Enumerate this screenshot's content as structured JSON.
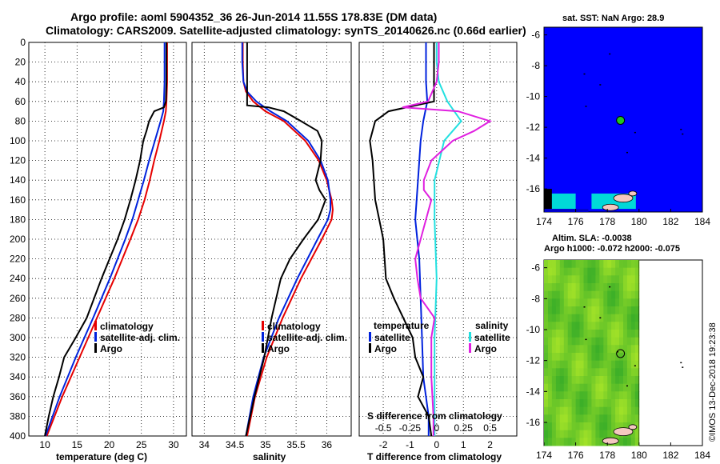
{
  "header": {
    "title_line1": "Argo profile: aoml 5904352_36 26-Jun-2014 11.55S 178.83E (DM data)",
    "title_line2": "Climatology: CARS2009. Satellite-adjusted climatology: synTS_20140626.nc (0.66d earlier)"
  },
  "stamp": "©IMOS 13-Dec-2018 19:23:38",
  "colors": {
    "climatology": "#e60000",
    "satellite": "#0022dd",
    "argo": "#000000",
    "salinity_sat": "#22e0e0",
    "salinity_argo": "#e020e0",
    "sea": "#0000ff",
    "land": "#f4c8c0",
    "sst_marker": "#22c422",
    "sla_field": "#66dd22"
  },
  "chart_data": [
    {
      "type": "line",
      "name": "temperature-profile",
      "xlabel": "temperature (deg C)",
      "ylabel": "",
      "xlim": [
        7.5,
        32
      ],
      "ylim": [
        400,
        0
      ],
      "x_ticks": [
        10,
        15,
        20,
        25,
        30
      ],
      "y_ticks": [
        0,
        20,
        40,
        60,
        80,
        100,
        120,
        140,
        160,
        180,
        200,
        220,
        240,
        260,
        280,
        300,
        320,
        340,
        360,
        380,
        400
      ],
      "legend": [
        "climatology",
        "satellite-adj. clim.",
        "Argo"
      ],
      "series": [
        {
          "name": "climatology",
          "depth": [
            0,
            20,
            40,
            60,
            70,
            80,
            100,
            120,
            140,
            160,
            180,
            200,
            240,
            280,
            320,
            360,
            400
          ],
          "values": [
            29.0,
            29.0,
            29.0,
            28.9,
            28.8,
            28.5,
            27.8,
            27.0,
            26.3,
            25.5,
            24.5,
            23.3,
            20.8,
            18.1,
            15.4,
            12.7,
            10.3
          ]
        },
        {
          "name": "satellite-adj. clim.",
          "depth": [
            0,
            20,
            40,
            60,
            70,
            80,
            100,
            120,
            140,
            160,
            180,
            200,
            240,
            280,
            320,
            360,
            400
          ],
          "values": [
            28.6,
            28.6,
            28.6,
            28.5,
            28.4,
            28.0,
            27.1,
            26.2,
            25.4,
            24.5,
            23.6,
            22.5,
            20.1,
            17.5,
            14.8,
            12.3,
            10.1
          ]
        },
        {
          "name": "Argo",
          "depth": [
            0,
            20,
            40,
            60,
            66,
            70,
            80,
            90,
            100,
            120,
            140,
            160,
            180,
            200,
            240,
            280,
            300,
            320,
            340,
            360,
            380,
            400
          ],
          "values": [
            28.9,
            28.9,
            28.9,
            28.8,
            28.5,
            27.0,
            26.2,
            25.8,
            25.3,
            24.8,
            24.1,
            23.3,
            22.4,
            21.3,
            18.8,
            16.5,
            14.8,
            13.0,
            12.2,
            11.3,
            10.6,
            10.0
          ]
        }
      ]
    },
    {
      "type": "line",
      "name": "salinity-profile",
      "xlabel": "salinity",
      "ylabel": "",
      "xlim": [
        33.8,
        36.4
      ],
      "ylim": [
        400,
        0
      ],
      "x_ticks": [
        34,
        34.5,
        35,
        35.5,
        36
      ],
      "legend": [
        "climatology",
        "satellite-adj. clim.",
        "Argo"
      ],
      "series": [
        {
          "name": "climatology",
          "depth": [
            0,
            20,
            40,
            50,
            60,
            70,
            80,
            100,
            120,
            140,
            160,
            170,
            180,
            200,
            240,
            280,
            320,
            360,
            400
          ],
          "values": [
            34.63,
            34.63,
            34.64,
            34.68,
            34.8,
            35.0,
            35.3,
            35.65,
            35.87,
            36.0,
            36.08,
            36.1,
            36.08,
            35.92,
            35.58,
            35.28,
            35.02,
            34.83,
            34.7
          ]
        },
        {
          "name": "satellite-adj. clim.",
          "depth": [
            0,
            20,
            40,
            50,
            60,
            70,
            80,
            100,
            120,
            140,
            160,
            170,
            180,
            200,
            240,
            280,
            320,
            360,
            400
          ],
          "values": [
            34.62,
            34.62,
            34.64,
            34.7,
            34.85,
            35.08,
            35.35,
            35.7,
            35.9,
            36.02,
            36.06,
            36.06,
            36.02,
            35.85,
            35.52,
            35.22,
            34.97,
            34.8,
            34.68
          ]
        },
        {
          "name": "Argo",
          "depth": [
            0,
            20,
            40,
            60,
            64,
            66,
            70,
            80,
            90,
            100,
            120,
            140,
            150,
            160,
            180,
            200,
            220,
            240,
            280,
            320,
            360,
            400
          ],
          "values": [
            34.7,
            34.7,
            34.7,
            34.7,
            34.7,
            35.05,
            35.3,
            35.58,
            35.85,
            35.92,
            35.9,
            35.82,
            35.88,
            35.98,
            35.86,
            35.62,
            35.4,
            35.25,
            35.1,
            34.98,
            34.82,
            34.68
          ]
        }
      ]
    },
    {
      "type": "line",
      "name": "difference-profile",
      "xlabel": "T difference from climatology",
      "secondary_xlabel": "S difference  from climatology",
      "xlim": [
        -2.9,
        3.0
      ],
      "secondary_xlim": [
        -0.725,
        0.75
      ],
      "ylim": [
        400,
        0
      ],
      "x_ticks": [
        -2,
        -1,
        0,
        1,
        2
      ],
      "secondary_x_ticks": [
        "-0.5",
        "-0.25",
        "0",
        "0.25",
        "0.5"
      ],
      "secondary_x_tick_values": [
        -0.5,
        -0.25,
        0,
        0.25,
        0.5
      ],
      "legend_temperature_title": "temperature",
      "legend_salinity_title": "salinity",
      "legend": [
        "satellite",
        "Argo",
        "satellite",
        "Argo"
      ],
      "series": [
        {
          "name": "temperature satellite",
          "depth": [
            0,
            20,
            40,
            60,
            80,
            100,
            140,
            180,
            220,
            260,
            300,
            340,
            380,
            400
          ],
          "values": [
            -0.4,
            -0.4,
            -0.4,
            -0.35,
            -0.5,
            -0.6,
            -0.7,
            -0.8,
            -0.65,
            -0.6,
            -0.55,
            -0.5,
            -0.3,
            -0.3
          ]
        },
        {
          "name": "temperature Argo",
          "depth": [
            0,
            20,
            40,
            60,
            70,
            80,
            100,
            120,
            160,
            200,
            240,
            260,
            300,
            320,
            340,
            360,
            380,
            400
          ],
          "values": [
            -0.1,
            -0.1,
            -0.1,
            -0.1,
            -1.8,
            -2.3,
            -2.5,
            -2.4,
            -2.3,
            -2.0,
            -1.9,
            -1.6,
            -0.9,
            -0.8,
            -0.5,
            -0.7,
            -0.3,
            -0.2
          ]
        },
        {
          "name": "salinity satellite",
          "depth": [
            0,
            20,
            40,
            60,
            80,
            100,
            140,
            180,
            240,
            300,
            360,
            400
          ],
          "values": [
            0.0,
            0.0,
            0.02,
            0.1,
            0.23,
            0.07,
            -0.02,
            -0.02,
            0.0,
            -0.02,
            -0.02,
            -0.02
          ]
        },
        {
          "name": "salinity Argo",
          "depth": [
            0,
            20,
            40,
            60,
            66,
            70,
            80,
            90,
            100,
            120,
            140,
            150,
            160,
            180,
            200,
            220,
            240,
            260,
            280,
            300,
            340,
            380,
            400
          ],
          "values": [
            0.02,
            0.02,
            0.0,
            -0.08,
            -0.32,
            0.2,
            0.5,
            0.35,
            0.15,
            -0.05,
            -0.12,
            -0.12,
            -0.05,
            -0.1,
            -0.15,
            -0.2,
            -0.18,
            -0.15,
            -0.02,
            -0.05,
            -0.05,
            -0.03,
            -0.03
          ]
        }
      ]
    },
    {
      "type": "heatmap",
      "name": "sst-map",
      "title": "sat. SST: NaN Argo: 28.9",
      "xlim": [
        174,
        184
      ],
      "ylim": [
        -17.5,
        -5.5
      ],
      "x_ticks": [
        174,
        176,
        178,
        180,
        182,
        184
      ],
      "y_ticks": [
        -6,
        -8,
        -10,
        -12,
        -14,
        -16
      ],
      "argo_position": [
        178.83,
        -11.55
      ]
    },
    {
      "type": "heatmap",
      "name": "sla-map",
      "title": "Altim. SLA: -0.0038",
      "subtitle": "Argo h1000: -0.072 h2000: -0.075",
      "xlim": [
        174,
        184
      ],
      "ylim": [
        -17.5,
        -5.5
      ],
      "x_ticks": [
        174,
        176,
        178,
        180,
        182,
        184
      ],
      "y_ticks": [
        -6,
        -8,
        -10,
        -12,
        -14,
        -16
      ],
      "argo_position": [
        178.83,
        -11.55
      ]
    }
  ]
}
